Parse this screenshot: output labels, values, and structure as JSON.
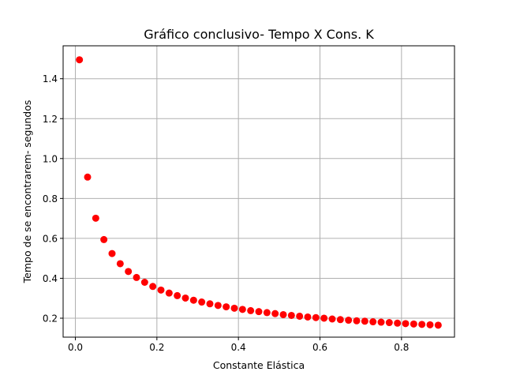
{
  "chart_data": {
    "type": "scatter",
    "title": "Gráfico conclusivo- Tempo X Cons. K",
    "xlabel": "Constante Elástica",
    "ylabel": "Tempo de se encontrarem- segundos",
    "xlim": [
      -0.03,
      0.93
    ],
    "ylim": [
      0.105,
      1.565
    ],
    "xticks": [
      0.0,
      0.2,
      0.4,
      0.6,
      0.8
    ],
    "xtick_labels": [
      "0.0",
      "0.2",
      "0.4",
      "0.6",
      "0.8"
    ],
    "yticks": [
      0.2,
      0.4,
      0.6,
      0.8,
      1.0,
      1.2,
      1.4
    ],
    "ytick_labels": [
      "0.2",
      "0.4",
      "0.6",
      "0.8",
      "1.0",
      "1.2",
      "1.4"
    ],
    "grid": true,
    "marker_color": "#ff0000",
    "series": [
      {
        "x": [
          0.01,
          0.03,
          0.05,
          0.07,
          0.09,
          0.11,
          0.13,
          0.15,
          0.17,
          0.19,
          0.21,
          0.23,
          0.25,
          0.27,
          0.29,
          0.31,
          0.33,
          0.35,
          0.37,
          0.39,
          0.41,
          0.43,
          0.45,
          0.47,
          0.49,
          0.51,
          0.53,
          0.55,
          0.57,
          0.59,
          0.61,
          0.63,
          0.65,
          0.67,
          0.69,
          0.71,
          0.73,
          0.75,
          0.77,
          0.79,
          0.81,
          0.83,
          0.85,
          0.87,
          0.89
        ],
        "y": [
          1.495,
          0.907,
          0.701,
          0.594,
          0.524,
          0.473,
          0.434,
          0.404,
          0.38,
          0.359,
          0.341,
          0.326,
          0.313,
          0.301,
          0.29,
          0.281,
          0.272,
          0.264,
          0.257,
          0.25,
          0.244,
          0.238,
          0.233,
          0.228,
          0.223,
          0.218,
          0.214,
          0.21,
          0.206,
          0.203,
          0.2,
          0.196,
          0.193,
          0.19,
          0.187,
          0.185,
          0.182,
          0.18,
          0.178,
          0.175,
          0.173,
          0.171,
          0.169,
          0.167,
          0.165
        ]
      }
    ]
  }
}
